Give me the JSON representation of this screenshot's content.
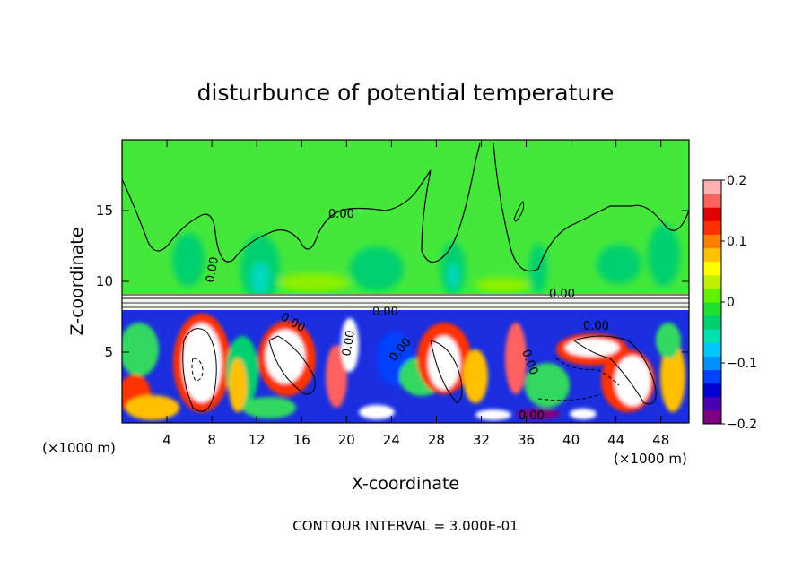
{
  "chart_data": {
    "type": "heatmap",
    "title": "disturbunce of potential temperature",
    "xlabel": "X-coordinate",
    "ylabel": "Z-coordinate",
    "x_unit": "(×1000 m)",
    "x_unit_right": "(×1000 m)",
    "xlim": [
      0,
      50.5
    ],
    "ylim": [
      0,
      20
    ],
    "x_ticks": [
      4,
      8,
      12,
      16,
      20,
      24,
      28,
      32,
      36,
      40,
      44,
      48
    ],
    "x_tick_labels": [
      "4",
      "8",
      "12",
      "16",
      "20",
      "24",
      "28",
      "32",
      "36",
      "40",
      "44",
      "48"
    ],
    "y_ticks": [
      5,
      10,
      15
    ],
    "y_tick_labels": [
      "5",
      "10",
      "15"
    ],
    "colorbar": {
      "range": [
        -0.2,
        0.2
      ],
      "tick_values": [
        0.2,
        0.1,
        0,
        -0.1,
        -0.2
      ],
      "tick_labels": [
        "0.2",
        "0.1",
        "0",
        "−0.1",
        "−0.2"
      ],
      "colors": [
        "#7f007f",
        "#4b00b4",
        "#0000d0",
        "#0040ff",
        "#0090ff",
        "#00c8ff",
        "#00e0b0",
        "#00d070",
        "#20e030",
        "#60f000",
        "#c0f000",
        "#ffff00",
        "#ffc000",
        "#ff8000",
        "#ff3000",
        "#e00000",
        "#ff6060",
        "#ffb0b0"
      ]
    },
    "contour_labels": [
      "0.00",
      "0.00",
      "0.00",
      "0.00",
      "0.00",
      "0.00",
      "0.00",
      "0.00",
      "0.00",
      "0.00"
    ],
    "footer": "CONTOUR INTERVAL = 3.000E-01"
  }
}
